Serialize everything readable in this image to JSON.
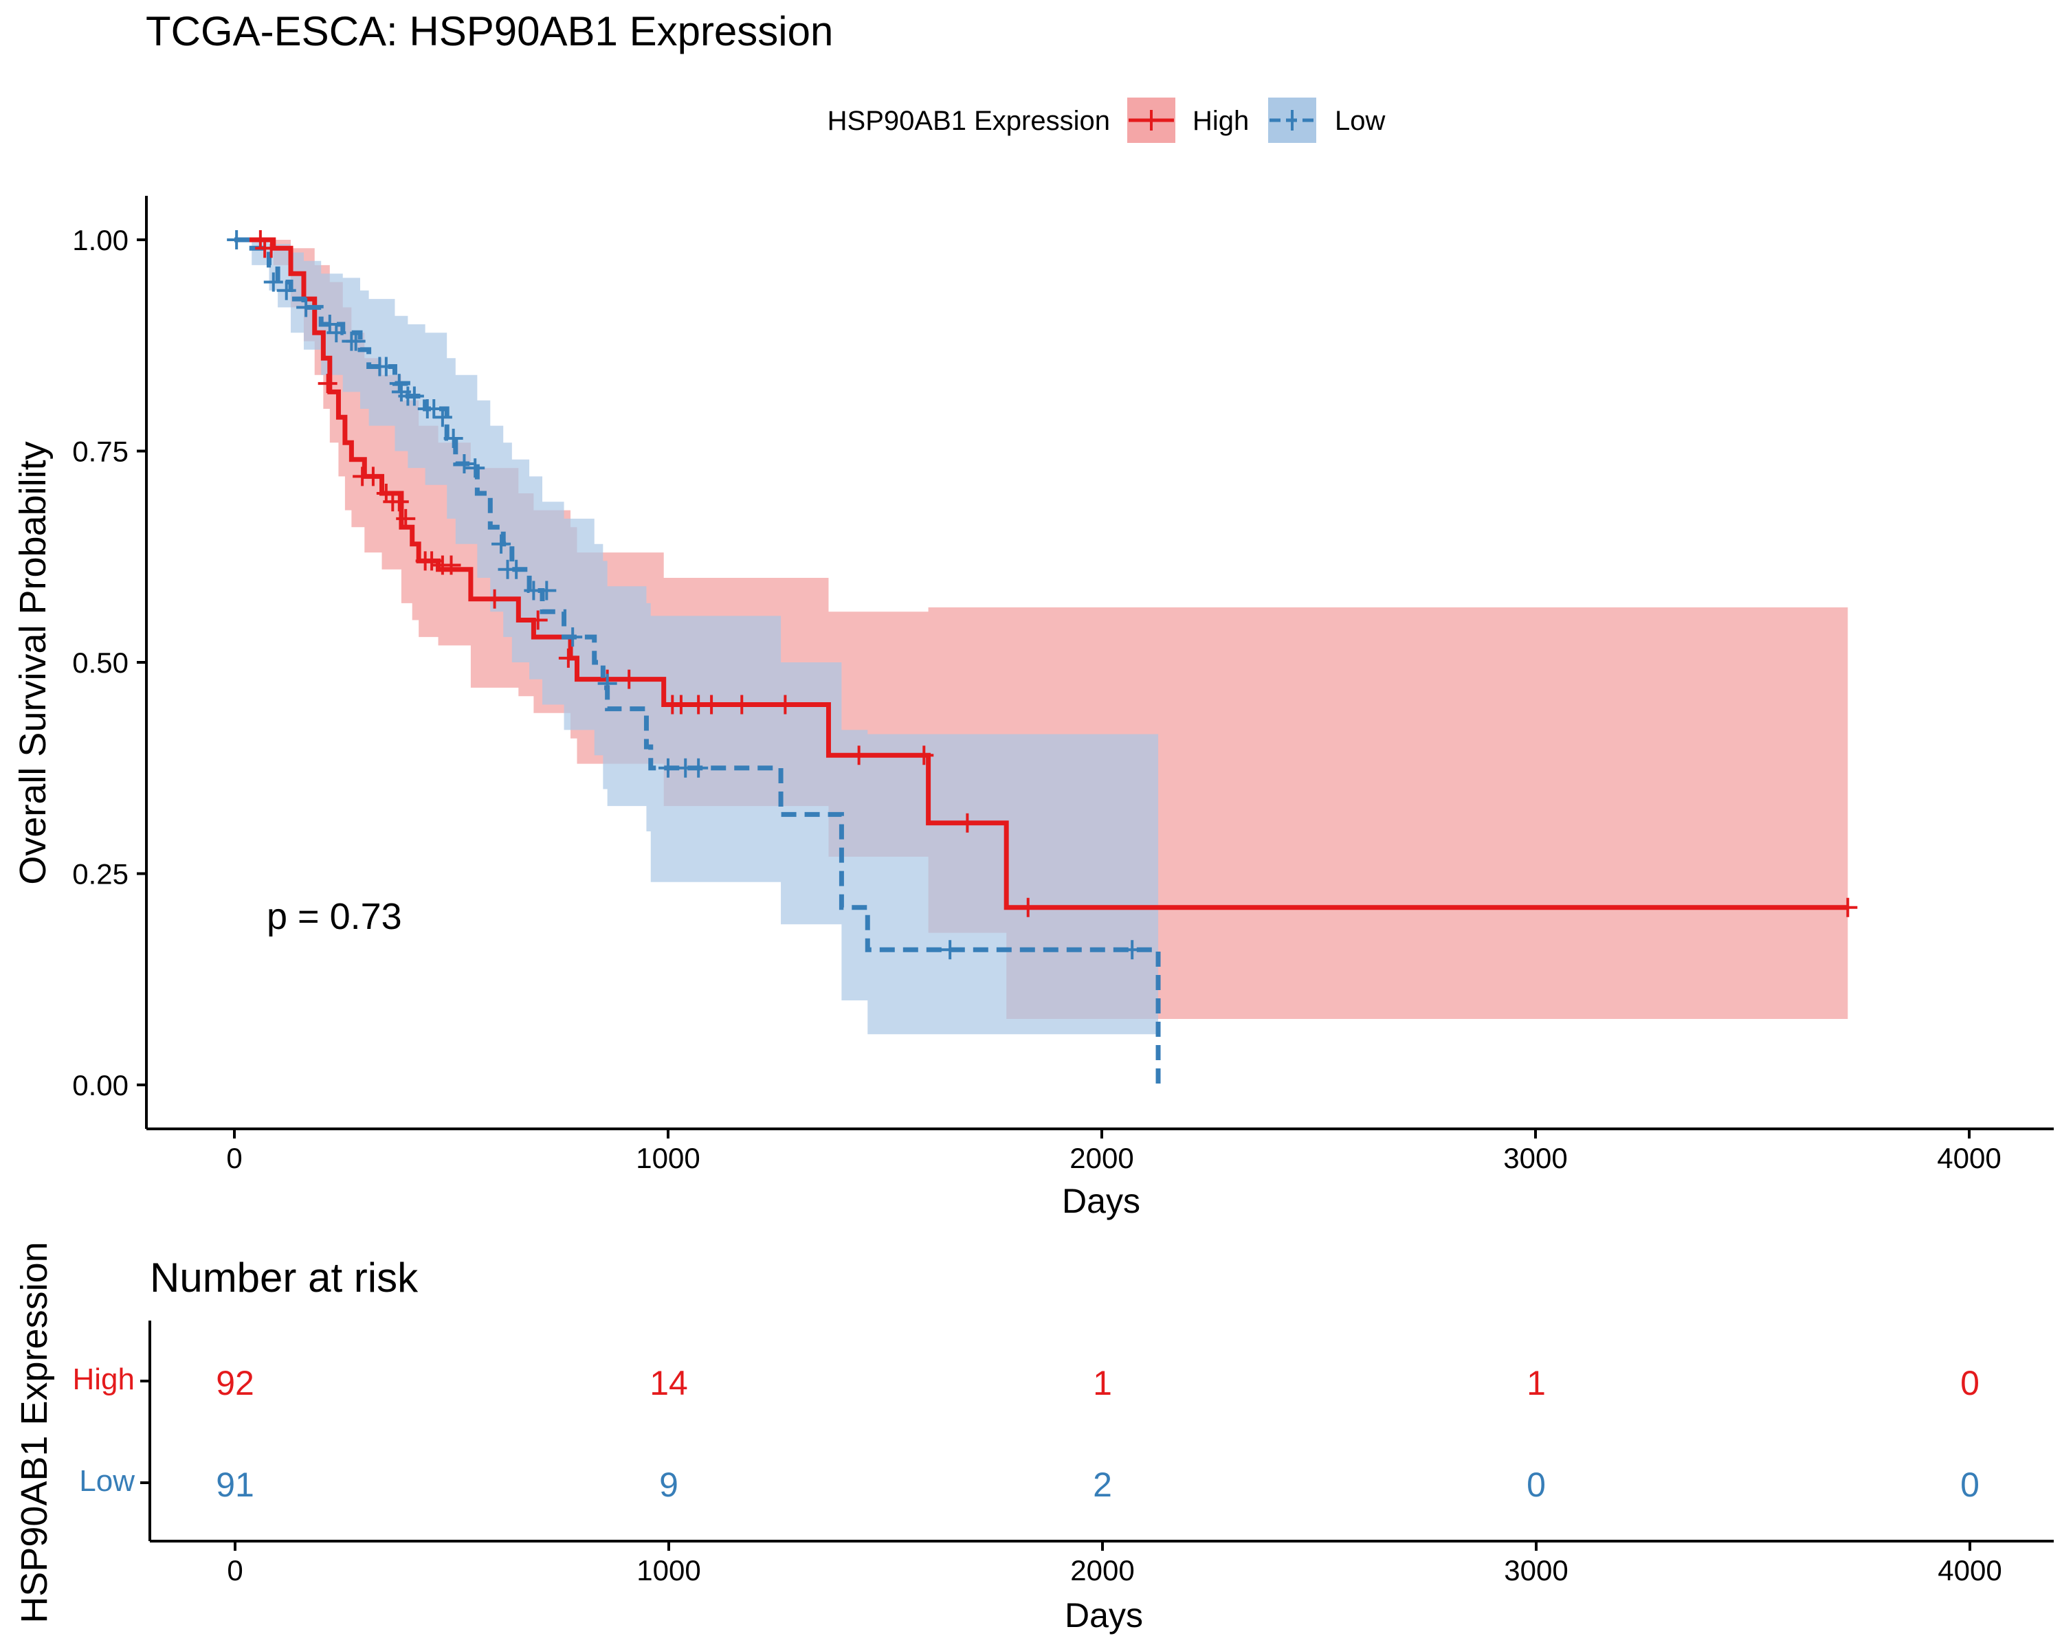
{
  "chart_data": {
    "type": "line",
    "subtype": "kaplan-meier",
    "title": "TCGA-ESCA: HSP90AB1 Expression",
    "legend": {
      "title": "HSP90AB1 Expression",
      "position": "top",
      "entries": [
        "High",
        "Low"
      ]
    },
    "xlabel": "Days",
    "ylabel": "Overall Survival Probability",
    "xlim": [
      -200,
      4200
    ],
    "ylim": [
      -0.05,
      1.05
    ],
    "x_ticks": [
      0,
      1000,
      2000,
      3000,
      4000
    ],
    "y_ticks": [
      0.0,
      0.25,
      0.5,
      0.75,
      1.0
    ],
    "y_tick_labels": [
      "0.00",
      "0.25",
      "0.50",
      "0.75",
      "1.00"
    ],
    "x_tick_labels": [
      "0",
      "1000",
      "2000",
      "3000",
      "4000"
    ],
    "grid": false,
    "pvalue_label": "p = 0.73",
    "pvalue_position": {
      "x": 70,
      "y": 0.197
    },
    "colors": {
      "High": "#e41a1c",
      "Low": "#377eb8",
      "High_band": "#f4a6a7",
      "Low_band": "#abc8e5"
    },
    "series": [
      {
        "name": "High",
        "line_style": "solid",
        "steps": [
          [
            0,
            1.0
          ],
          [
            90,
            0.99
          ],
          [
            130,
            0.96
          ],
          [
            160,
            0.93
          ],
          [
            185,
            0.89
          ],
          [
            205,
            0.86
          ],
          [
            220,
            0.82
          ],
          [
            240,
            0.79
          ],
          [
            255,
            0.76
          ],
          [
            270,
            0.74
          ],
          [
            300,
            0.72
          ],
          [
            340,
            0.7
          ],
          [
            385,
            0.66
          ],
          [
            410,
            0.64
          ],
          [
            425,
            0.62
          ],
          [
            470,
            0.61
          ],
          [
            545,
            0.575
          ],
          [
            655,
            0.55
          ],
          [
            690,
            0.53
          ],
          [
            775,
            0.505
          ],
          [
            790,
            0.48
          ],
          [
            990,
            0.45
          ],
          [
            1370,
            0.39
          ],
          [
            1600,
            0.31
          ],
          [
            1780,
            0.21
          ],
          [
            3720,
            0.21
          ]
        ],
        "ci_upper": [
          [
            0,
            1.0
          ],
          [
            130,
            0.99
          ],
          [
            185,
            0.97
          ],
          [
            220,
            0.95
          ],
          [
            250,
            0.92
          ],
          [
            270,
            0.89
          ],
          [
            300,
            0.86
          ],
          [
            340,
            0.84
          ],
          [
            385,
            0.81
          ],
          [
            425,
            0.78
          ],
          [
            470,
            0.76
          ],
          [
            545,
            0.73
          ],
          [
            655,
            0.7
          ],
          [
            690,
            0.68
          ],
          [
            775,
            0.66
          ],
          [
            790,
            0.63
          ],
          [
            990,
            0.6
          ],
          [
            1370,
            0.56
          ],
          [
            1600,
            0.565
          ],
          [
            3720,
            0.565
          ]
        ],
        "ci_lower": [
          [
            0,
            1.0
          ],
          [
            90,
            0.97
          ],
          [
            130,
            0.92
          ],
          [
            160,
            0.88
          ],
          [
            185,
            0.84
          ],
          [
            205,
            0.8
          ],
          [
            220,
            0.76
          ],
          [
            240,
            0.72
          ],
          [
            255,
            0.68
          ],
          [
            270,
            0.66
          ],
          [
            300,
            0.63
          ],
          [
            340,
            0.61
          ],
          [
            385,
            0.57
          ],
          [
            410,
            0.55
          ],
          [
            425,
            0.53
          ],
          [
            470,
            0.52
          ],
          [
            545,
            0.47
          ],
          [
            655,
            0.46
          ],
          [
            690,
            0.44
          ],
          [
            775,
            0.41
          ],
          [
            790,
            0.38
          ],
          [
            990,
            0.33
          ],
          [
            1370,
            0.27
          ],
          [
            1600,
            0.18
          ],
          [
            1780,
            0.078
          ],
          [
            3720,
            0.078
          ]
        ],
        "censors": [
          [
            60,
            1.0
          ],
          [
            70,
            0.99
          ],
          [
            85,
            0.99
          ],
          [
            215,
            0.83
          ],
          [
            295,
            0.72
          ],
          [
            320,
            0.72
          ],
          [
            350,
            0.7
          ],
          [
            365,
            0.69
          ],
          [
            380,
            0.69
          ],
          [
            395,
            0.67
          ],
          [
            440,
            0.62
          ],
          [
            455,
            0.62
          ],
          [
            480,
            0.615
          ],
          [
            500,
            0.615
          ],
          [
            600,
            0.575
          ],
          [
            700,
            0.55
          ],
          [
            770,
            0.505
          ],
          [
            860,
            0.48
          ],
          [
            910,
            0.48
          ],
          [
            1010,
            0.45
          ],
          [
            1030,
            0.45
          ],
          [
            1070,
            0.45
          ],
          [
            1100,
            0.45
          ],
          [
            1170,
            0.45
          ],
          [
            1270,
            0.45
          ],
          [
            1440,
            0.39
          ],
          [
            1590,
            0.39
          ],
          [
            1690,
            0.31
          ],
          [
            1830,
            0.21
          ],
          [
            3720,
            0.21
          ]
        ]
      },
      {
        "name": "Low",
        "line_style": "dashed",
        "steps": [
          [
            0,
            1.0
          ],
          [
            40,
            0.99
          ],
          [
            80,
            0.97
          ],
          [
            100,
            0.95
          ],
          [
            130,
            0.93
          ],
          [
            160,
            0.92
          ],
          [
            200,
            0.9
          ],
          [
            250,
            0.89
          ],
          [
            290,
            0.87
          ],
          [
            310,
            0.85
          ],
          [
            370,
            0.83
          ],
          [
            400,
            0.815
          ],
          [
            440,
            0.8
          ],
          [
            490,
            0.765
          ],
          [
            510,
            0.735
          ],
          [
            560,
            0.7
          ],
          [
            590,
            0.66
          ],
          [
            620,
            0.64
          ],
          [
            640,
            0.61
          ],
          [
            680,
            0.585
          ],
          [
            710,
            0.56
          ],
          [
            760,
            0.53
          ],
          [
            830,
            0.5
          ],
          [
            850,
            0.47
          ],
          [
            860,
            0.445
          ],
          [
            950,
            0.4
          ],
          [
            960,
            0.375
          ],
          [
            1260,
            0.32
          ],
          [
            1400,
            0.21
          ],
          [
            1460,
            0.16
          ],
          [
            2130,
            0.0
          ]
        ],
        "ci_upper": [
          [
            0,
            1.0
          ],
          [
            80,
            0.995
          ],
          [
            130,
            0.985
          ],
          [
            160,
            0.975
          ],
          [
            200,
            0.96
          ],
          [
            250,
            0.955
          ],
          [
            290,
            0.94
          ],
          [
            310,
            0.93
          ],
          [
            370,
            0.91
          ],
          [
            400,
            0.9
          ],
          [
            440,
            0.89
          ],
          [
            490,
            0.86
          ],
          [
            510,
            0.84
          ],
          [
            560,
            0.81
          ],
          [
            590,
            0.78
          ],
          [
            620,
            0.76
          ],
          [
            640,
            0.74
          ],
          [
            680,
            0.72
          ],
          [
            710,
            0.69
          ],
          [
            760,
            0.67
          ],
          [
            830,
            0.64
          ],
          [
            850,
            0.62
          ],
          [
            860,
            0.59
          ],
          [
            950,
            0.57
          ],
          [
            960,
            0.555
          ],
          [
            1260,
            0.5
          ],
          [
            1400,
            0.42
          ],
          [
            1460,
            0.415
          ],
          [
            2130,
            0.415
          ]
        ],
        "ci_lower": [
          [
            0,
            1.0
          ],
          [
            40,
            0.97
          ],
          [
            80,
            0.94
          ],
          [
            100,
            0.92
          ],
          [
            130,
            0.89
          ],
          [
            160,
            0.87
          ],
          [
            200,
            0.84
          ],
          [
            250,
            0.82
          ],
          [
            290,
            0.8
          ],
          [
            310,
            0.78
          ],
          [
            370,
            0.75
          ],
          [
            400,
            0.73
          ],
          [
            440,
            0.71
          ],
          [
            490,
            0.67
          ],
          [
            510,
            0.64
          ],
          [
            560,
            0.6
          ],
          [
            590,
            0.56
          ],
          [
            620,
            0.53
          ],
          [
            640,
            0.5
          ],
          [
            680,
            0.48
          ],
          [
            710,
            0.45
          ],
          [
            760,
            0.42
          ],
          [
            830,
            0.39
          ],
          [
            850,
            0.35
          ],
          [
            860,
            0.33
          ],
          [
            950,
            0.3
          ],
          [
            960,
            0.24
          ],
          [
            1260,
            0.19
          ],
          [
            1400,
            0.1
          ],
          [
            1460,
            0.06
          ],
          [
            2130,
            0.06
          ]
        ],
        "censors": [
          [
            5,
            1.0
          ],
          [
            90,
            0.95
          ],
          [
            120,
            0.94
          ],
          [
            165,
            0.92
          ],
          [
            220,
            0.9
          ],
          [
            235,
            0.89
          ],
          [
            270,
            0.88
          ],
          [
            280,
            0.88
          ],
          [
            335,
            0.85
          ],
          [
            350,
            0.85
          ],
          [
            380,
            0.83
          ],
          [
            385,
            0.82
          ],
          [
            400,
            0.815
          ],
          [
            415,
            0.815
          ],
          [
            445,
            0.8
          ],
          [
            460,
            0.8
          ],
          [
            480,
            0.79
          ],
          [
            505,
            0.765
          ],
          [
            530,
            0.735
          ],
          [
            555,
            0.73
          ],
          [
            615,
            0.64
          ],
          [
            630,
            0.61
          ],
          [
            650,
            0.61
          ],
          [
            690,
            0.585
          ],
          [
            720,
            0.585
          ],
          [
            780,
            0.53
          ],
          [
            860,
            0.475
          ],
          [
            1000,
            0.375
          ],
          [
            1040,
            0.375
          ],
          [
            1070,
            0.375
          ],
          [
            1650,
            0.16
          ],
          [
            2070,
            0.16
          ]
        ]
      }
    ]
  },
  "risk_table": {
    "title": "Number at risk",
    "ylabel": "HSP90AB1 Expression",
    "xlabel": "Days",
    "x_ticks": [
      0,
      1000,
      2000,
      3000,
      4000
    ],
    "x_tick_labels": [
      "0",
      "1000",
      "2000",
      "3000",
      "4000"
    ],
    "rows": [
      {
        "label": "High",
        "values": [
          "92",
          "14",
          "1",
          "1",
          "0"
        ]
      },
      {
        "label": "Low",
        "values": [
          "91",
          "9",
          "2",
          "0",
          "0"
        ]
      }
    ]
  }
}
